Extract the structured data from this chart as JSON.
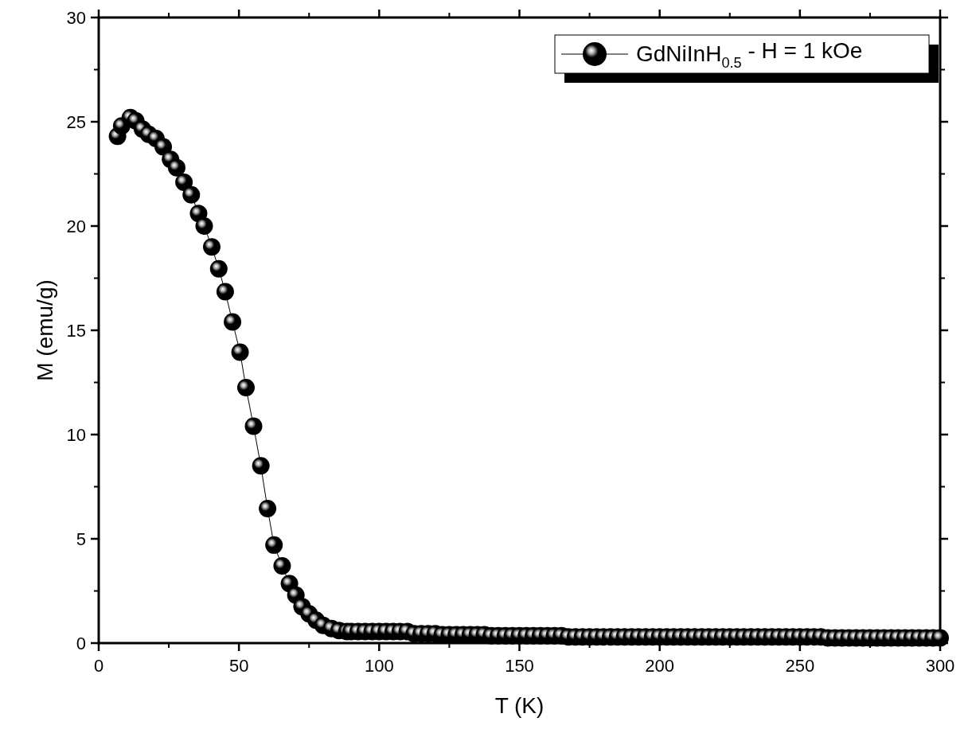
{
  "chart_data": {
    "type": "line",
    "xlabel": "T (K)",
    "ylabel": "M (emu/g)",
    "xlim": [
      0,
      300
    ],
    "ylim": [
      0,
      30
    ],
    "xticks": [
      0,
      50,
      100,
      150,
      200,
      250,
      300
    ],
    "yticks": [
      0,
      5,
      10,
      15,
      20,
      25,
      30
    ],
    "grid": false,
    "legend": "top right",
    "marker": "circle",
    "line_style": "solid",
    "series": [
      {
        "name": "GdNiInH$_{0.5}$ - H = 1 kOe",
        "color": "#000000",
        "x": [
          6.7,
          8.2,
          11.3,
          13.2,
          15.6,
          17.8,
          20.4,
          23,
          25.6,
          27.8,
          30.4,
          33,
          35.6,
          37.6,
          40.3,
          42.8,
          45.1,
          47.7,
          50.4,
          52.5,
          55.2,
          57.8,
          60.2,
          62.5,
          65.4,
          68,
          70.3,
          72.5,
          75,
          77.5,
          80,
          83,
          85.7,
          88.5,
          90,
          92.5,
          95,
          97.5,
          100,
          102.5,
          105,
          107.5,
          110,
          112.5,
          115,
          117.5,
          120,
          122.5,
          125,
          127.5,
          130,
          132.5,
          135,
          137.5,
          140,
          142.5,
          145,
          147.5,
          150,
          152.5,
          155,
          157.5,
          160,
          162.5,
          165,
          167.5,
          170,
          172.5,
          175,
          177.5,
          180,
          182.5,
          185,
          187.5,
          190,
          192.5,
          195,
          197.5,
          200,
          202.5,
          205,
          207.5,
          210,
          212.5,
          215,
          217.5,
          220,
          222.5,
          225,
          227.5,
          230,
          232.5,
          235,
          237.5,
          240,
          242.5,
          245,
          247.5,
          250,
          252.5,
          255,
          257.5,
          260,
          262.5,
          265,
          267.5,
          270,
          272.5,
          275,
          277.5,
          280,
          282.5,
          285,
          287.5,
          290,
          292.5,
          295,
          297.5,
          300
        ],
        "values": [
          24.3,
          24.8,
          25.2,
          25.05,
          24.65,
          24.4,
          24.2,
          23.8,
          23.2,
          22.8,
          22.1,
          21.5,
          20.6,
          20.0,
          19.0,
          17.95,
          16.85,
          15.4,
          13.95,
          12.25,
          10.4,
          8.5,
          6.45,
          4.7,
          3.7,
          2.85,
          2.3,
          1.75,
          1.4,
          1.1,
          0.85,
          0.7,
          0.6,
          0.55,
          0.55,
          0.55,
          0.55,
          0.55,
          0.55,
          0.55,
          0.55,
          0.55,
          0.55,
          0.45,
          0.45,
          0.45,
          0.45,
          0.4,
          0.4,
          0.4,
          0.4,
          0.4,
          0.4,
          0.4,
          0.35,
          0.35,
          0.35,
          0.35,
          0.35,
          0.35,
          0.35,
          0.35,
          0.35,
          0.35,
          0.35,
          0.3,
          0.3,
          0.3,
          0.3,
          0.3,
          0.3,
          0.3,
          0.3,
          0.3,
          0.3,
          0.3,
          0.3,
          0.3,
          0.3,
          0.3,
          0.3,
          0.3,
          0.3,
          0.3,
          0.3,
          0.3,
          0.3,
          0.3,
          0.3,
          0.3,
          0.3,
          0.3,
          0.3,
          0.3,
          0.3,
          0.3,
          0.3,
          0.3,
          0.3,
          0.3,
          0.3,
          0.3,
          0.25,
          0.25,
          0.25,
          0.25,
          0.25,
          0.25,
          0.25,
          0.25,
          0.25,
          0.25,
          0.25,
          0.25,
          0.25,
          0.25,
          0.25,
          0.25,
          0.25
        ]
      }
    ]
  }
}
